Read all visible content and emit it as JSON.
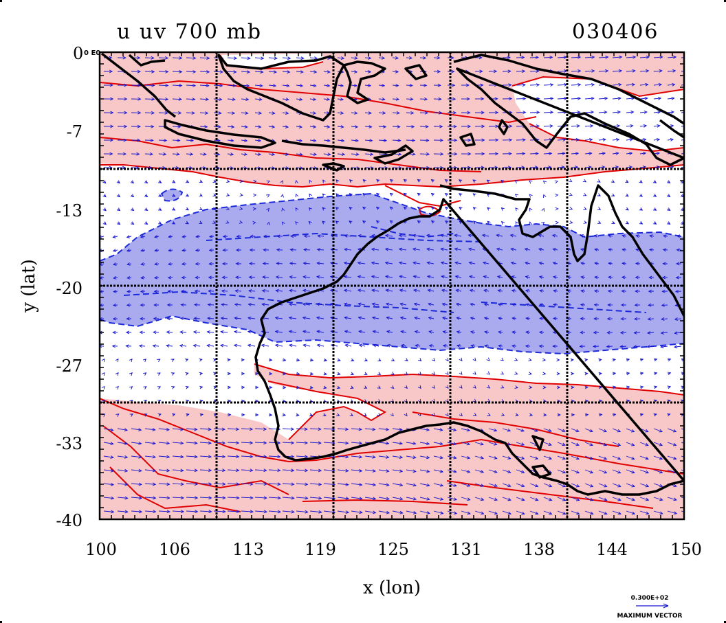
{
  "title": {
    "left": "u uv 700 mb",
    "right": "030406"
  },
  "corner_label": "0 E0",
  "axes": {
    "xlabel": "x (lon)",
    "ylabel": "y (lat)",
    "xticks": [
      "100",
      "106",
      "113",
      "119",
      "125",
      "131",
      "138",
      "144",
      "150"
    ],
    "yticks": [
      "0",
      "-7",
      "-13",
      "-20",
      "-27",
      "-33",
      "-40"
    ]
  },
  "reference_vector": {
    "value": "0.300E+02",
    "label": "MAXIMUM VECTOR"
  },
  "colors": {
    "positive_fill": "#f8c8c8",
    "positive_contour": "#e00000",
    "negative_fill": "#aaaaee",
    "negative_contour": "#1c2ad8",
    "wind_vectors": "#1414d0",
    "coastline": "#000000",
    "grid": "#000000"
  },
  "chart_data": {
    "type": "map",
    "projection": "lon-lat",
    "xlim": [
      100,
      150
    ],
    "ylim": [
      -40,
      0
    ],
    "grid_lon": [
      110,
      120,
      130,
      140
    ],
    "grid_lat": [
      -10.5,
      -20,
      -30.5
    ],
    "field": "u wind component at 700 mb",
    "shading": "red = positive u (westerly), blue dashed = negative u (easterly)",
    "overlay": "wind vectors (u,v)",
    "date": "030406"
  }
}
